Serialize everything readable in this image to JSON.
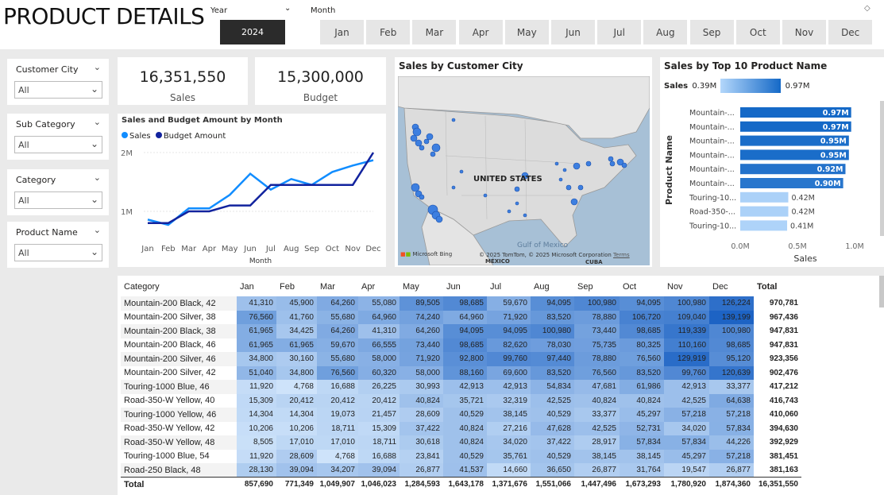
{
  "page": {
    "title": "PRODUCT DETAILS"
  },
  "year_slicer": {
    "label": "Year",
    "value": "2024"
  },
  "month_slicer": {
    "label": "Month",
    "months": [
      "Jan",
      "Feb",
      "Mar",
      "Apr",
      "May",
      "Jun",
      "Jul",
      "Aug",
      "Sep",
      "Oct",
      "Nov",
      "Dec"
    ]
  },
  "slicers": [
    {
      "label": "Customer City",
      "value": "All"
    },
    {
      "label": "Sub Category",
      "value": "All"
    },
    {
      "label": "Category",
      "value": "All"
    },
    {
      "label": "Product Name",
      "value": "All"
    }
  ],
  "kpis": {
    "sales": {
      "value": "16,351,550",
      "label": "Sales"
    },
    "budget": {
      "value": "15,300,000",
      "label": "Budget"
    }
  },
  "line_chart": {
    "title": "Sales and Budget Amount by Month",
    "legend": [
      "Sales",
      "Budget Amount"
    ],
    "xlabel": "Month",
    "yticks": [
      "2M",
      "1M"
    ]
  },
  "map": {
    "title": "Sales by Customer City",
    "country_label": "UNITED STATES",
    "gulf_label": "Gulf of Mexico",
    "mexico_label": "MÉXICO",
    "cuba_label": "CUBA",
    "attribution": "© 2025 TomTom, © 2025 Microsoft Corporation",
    "terms": "Terms",
    "bing": "Microsoft Bing"
  },
  "bar_chart": {
    "title": "Sales by Top 10 Product Name",
    "gradient_label": "Sales",
    "gradient_min": "0.39M",
    "gradient_max": "0.97M",
    "ylabel": "Product Name",
    "xlabel": "Sales",
    "xticks": [
      "0.0M",
      "0.5M",
      "1.0M"
    ]
  },
  "chart_data": [
    {
      "type": "line",
      "title": "Sales and Budget Amount by Month",
      "xlabel": "Month",
      "x": [
        "Jan",
        "Feb",
        "Mar",
        "Apr",
        "May",
        "Jun",
        "Jul",
        "Aug",
        "Sep",
        "Oct",
        "Nov",
        "Dec"
      ],
      "ylim": [
        0.6,
        2.2
      ],
      "y_unit": "M",
      "series": [
        {
          "name": "Sales",
          "color": "#118dff",
          "values": [
            0.86,
            0.77,
            1.05,
            1.05,
            1.28,
            1.64,
            1.37,
            1.55,
            1.45,
            1.67,
            1.78,
            1.87
          ]
        },
        {
          "name": "Budget Amount",
          "color": "#12239e",
          "values": [
            0.8,
            0.8,
            1.0,
            1.0,
            1.1,
            1.1,
            1.45,
            1.45,
            1.45,
            1.45,
            1.45,
            2.0
          ]
        }
      ]
    },
    {
      "type": "bar",
      "orientation": "horizontal",
      "title": "Sales by Top 10 Product Name",
      "ylabel": "Product Name",
      "xlabel": "Sales",
      "xlim": [
        0,
        1.0
      ],
      "categories": [
        "Mountain-...",
        "Mountain-...",
        "Mountain-...",
        "Mountain-...",
        "Mountain-...",
        "Mountain-...",
        "Touring-10...",
        "Road-350-...",
        "Touring-10..."
      ],
      "values": [
        0.97,
        0.97,
        0.95,
        0.95,
        0.92,
        0.9,
        0.42,
        0.42,
        0.41
      ],
      "labels": [
        "0.97M",
        "0.97M",
        "0.95M",
        "0.95M",
        "0.92M",
        "0.90M",
        "0.42M",
        "0.42M",
        "0.41M"
      ]
    }
  ],
  "table": {
    "headers": [
      "Category",
      "Jan",
      "Feb",
      "Mar",
      "Apr",
      "May",
      "Jun",
      "Jul",
      "Aug",
      "Sep",
      "Oct",
      "Nov",
      "Dec",
      "Total"
    ],
    "rows": [
      [
        "Mountain-200 Black, 42",
        "41,310",
        "45,900",
        "64,260",
        "55,080",
        "89,505",
        "98,685",
        "59,670",
        "94,095",
        "100,980",
        "94,095",
        "100,980",
        "126,224",
        "970,781"
      ],
      [
        "Mountain-200 Silver, 38",
        "76,560",
        "41,760",
        "55,680",
        "64,960",
        "74,240",
        "64,960",
        "71,920",
        "83,520",
        "78,880",
        "106,720",
        "109,040",
        "139,199",
        "967,436"
      ],
      [
        "Mountain-200 Black, 38",
        "61,965",
        "34,425",
        "64,260",
        "41,310",
        "64,260",
        "94,095",
        "94,095",
        "100,980",
        "73,440",
        "98,685",
        "119,339",
        "100,980",
        "947,831"
      ],
      [
        "Mountain-200 Black, 46",
        "61,965",
        "61,965",
        "59,670",
        "66,555",
        "73,440",
        "98,685",
        "82,620",
        "78,030",
        "75,735",
        "80,325",
        "110,160",
        "98,685",
        "947,831"
      ],
      [
        "Mountain-200 Silver, 46",
        "34,800",
        "30,160",
        "55,680",
        "58,000",
        "71,920",
        "92,800",
        "99,760",
        "97,440",
        "78,880",
        "76,560",
        "129,919",
        "95,120",
        "923,356"
      ],
      [
        "Mountain-200 Silver, 42",
        "51,040",
        "34,800",
        "76,560",
        "60,320",
        "58,000",
        "88,160",
        "69,600",
        "83,520",
        "76,560",
        "83,520",
        "99,760",
        "120,639",
        "902,476"
      ],
      [
        "Touring-1000 Blue, 46",
        "11,920",
        "4,768",
        "16,688",
        "26,225",
        "30,993",
        "42,913",
        "42,913",
        "54,834",
        "47,681",
        "61,986",
        "42,913",
        "33,377",
        "417,212"
      ],
      [
        "Road-350-W Yellow, 40",
        "15,309",
        "20,412",
        "20,412",
        "20,412",
        "40,824",
        "35,721",
        "32,319",
        "42,525",
        "40,824",
        "40,824",
        "42,525",
        "64,638",
        "416,743"
      ],
      [
        "Touring-1000 Yellow, 46",
        "14,304",
        "14,304",
        "19,073",
        "21,457",
        "28,609",
        "40,529",
        "38,145",
        "40,529",
        "33,377",
        "45,297",
        "57,218",
        "57,218",
        "410,060"
      ],
      [
        "Road-350-W Yellow, 42",
        "10,206",
        "10,206",
        "18,711",
        "15,309",
        "37,422",
        "40,824",
        "27,216",
        "47,628",
        "42,525",
        "52,731",
        "34,020",
        "57,834",
        "394,630"
      ],
      [
        "Road-350-W Yellow, 48",
        "8,505",
        "17,010",
        "17,010",
        "18,711",
        "30,618",
        "40,824",
        "34,020",
        "37,422",
        "28,917",
        "57,834",
        "57,834",
        "44,226",
        "392,929"
      ],
      [
        "Touring-1000 Blue, 54",
        "11,920",
        "28,609",
        "4,768",
        "16,688",
        "23,841",
        "40,529",
        "35,761",
        "40,529",
        "38,145",
        "38,145",
        "45,297",
        "57,218",
        "381,451"
      ],
      [
        "Road-250 Black, 48",
        "28,130",
        "39,094",
        "34,207",
        "39,094",
        "26,877",
        "41,537",
        "14,660",
        "36,650",
        "26,877",
        "31,764",
        "19,547",
        "26,877",
        "381,163"
      ]
    ],
    "total": [
      "Total",
      "857,690",
      "771,349",
      "1,049,907",
      "1,046,023",
      "1,284,593",
      "1,643,178",
      "1,371,676",
      "1,551,066",
      "1,447,496",
      "1,673,293",
      "1,780,920",
      "1,874,360",
      "16,351,550"
    ]
  }
}
